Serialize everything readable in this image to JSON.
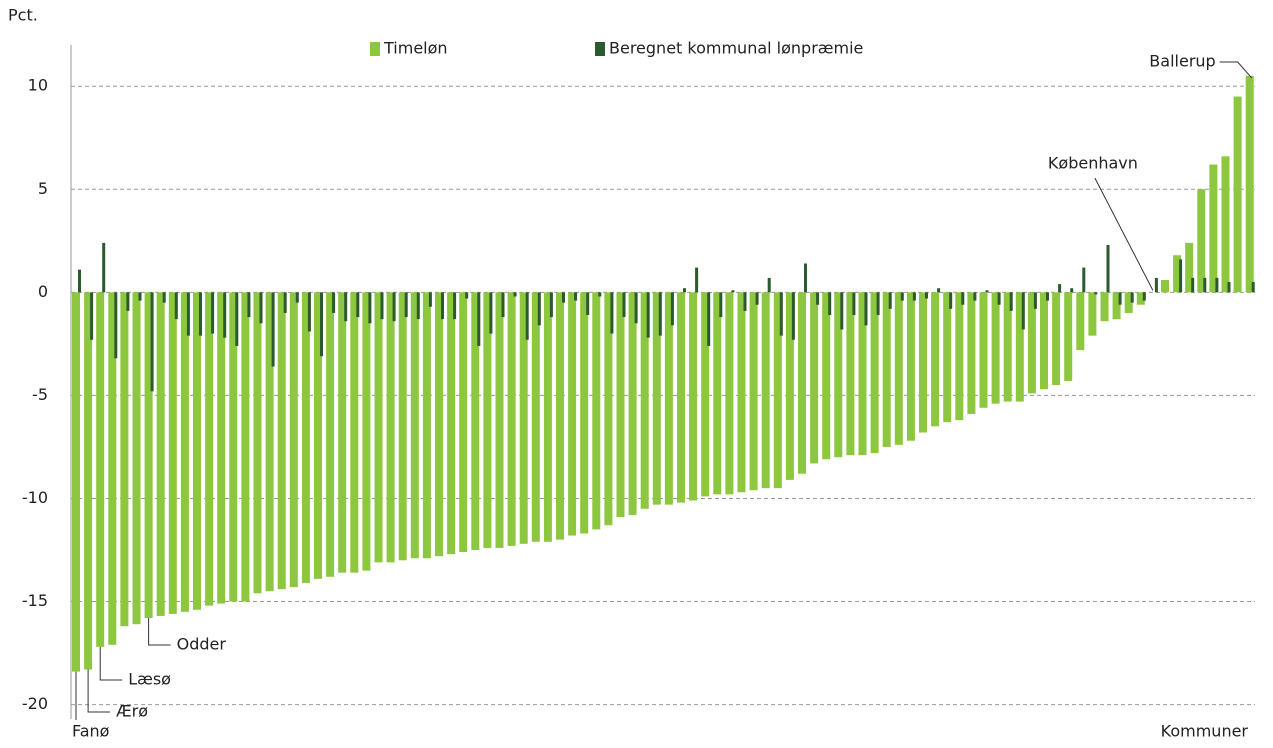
{
  "chart_data": {
    "type": "bar",
    "y_label": "Pct.",
    "x_label": "Kommuner",
    "categories": [
      "Fanø",
      "Ærø",
      "Læsø",
      null,
      null,
      null,
      "Odder",
      null,
      null,
      null,
      null,
      null,
      null,
      null,
      null,
      null,
      null,
      null,
      null,
      null,
      null,
      null,
      null,
      null,
      null,
      null,
      null,
      null,
      null,
      null,
      null,
      null,
      null,
      null,
      null,
      null,
      null,
      null,
      null,
      null,
      null,
      null,
      null,
      null,
      null,
      null,
      null,
      null,
      null,
      null,
      null,
      null,
      null,
      null,
      null,
      null,
      null,
      null,
      null,
      null,
      null,
      null,
      null,
      null,
      null,
      null,
      null,
      null,
      null,
      null,
      null,
      null,
      null,
      null,
      null,
      null,
      null,
      null,
      null,
      null,
      null,
      null,
      null,
      null,
      null,
      null,
      null,
      null,
      null,
      "København",
      null,
      null,
      null,
      null,
      null,
      null,
      null,
      "Ballerup"
    ],
    "series": [
      {
        "name": "Timeløn",
        "color": "#8dc63f",
        "values": [
          -18.4,
          -18.3,
          -17.2,
          -17.1,
          -16.2,
          -16.1,
          -15.8,
          -15.7,
          -15.6,
          -15.5,
          -15.4,
          -15.2,
          -15.1,
          -15.0,
          -15.0,
          -14.6,
          -14.5,
          -14.4,
          -14.3,
          -14.1,
          -13.9,
          -13.8,
          -13.6,
          -13.6,
          -13.5,
          -13.1,
          -13.1,
          -13.0,
          -12.9,
          -12.9,
          -12.8,
          -12.7,
          -12.6,
          -12.5,
          -12.4,
          -12.4,
          -12.3,
          -12.2,
          -12.1,
          -12.1,
          -12.0,
          -11.8,
          -11.7,
          -11.5,
          -11.3,
          -10.9,
          -10.8,
          -10.5,
          -10.3,
          -10.3,
          -10.2,
          -10.1,
          -9.9,
          -9.8,
          -9.8,
          -9.7,
          -9.6,
          -9.5,
          -9.5,
          -9.1,
          -8.8,
          -8.3,
          -8.1,
          -8.0,
          -7.9,
          -7.9,
          -7.8,
          -7.5,
          -7.4,
          -7.2,
          -6.8,
          -6.5,
          -6.3,
          -6.2,
          -5.9,
          -5.6,
          -5.4,
          -5.3,
          -5.3,
          -4.9,
          -4.7,
          -4.5,
          -4.3,
          -2.8,
          -2.1,
          -1.4,
          -1.3,
          -1.0,
          -0.6,
          0,
          0.6,
          1.8,
          2.4,
          5.0,
          6.2,
          6.6,
          9.5,
          10.5
        ]
      },
      {
        "name": "Beregnet kommunal lønpræmie",
        "color": "#2b5a2e",
        "values": [
          1.1,
          -2.3,
          2.4,
          -3.2,
          -0.9,
          -0.4,
          -4.8,
          -0.5,
          -1.3,
          -2.1,
          -2.1,
          -2.0,
          -2.2,
          -2.6,
          -1.2,
          -1.5,
          -3.6,
          -1.0,
          -0.5,
          -1.9,
          -3.1,
          -1.0,
          -1.4,
          -1.2,
          -1.5,
          -1.3,
          -1.4,
          -1.2,
          -1.3,
          -0.7,
          -1.3,
          -1.3,
          -0.3,
          -2.6,
          -2.0,
          -1.2,
          -0.2,
          -2.3,
          -1.6,
          -1.2,
          -0.5,
          -0.4,
          -1.1,
          -0.2,
          -2.0,
          -1.2,
          -1.5,
          -2.2,
          -2.1,
          -1.6,
          0.2,
          1.2,
          -2.6,
          -1.2,
          0.1,
          -0.9,
          -0.6,
          0.7,
          -2.1,
          -2.3,
          1.4,
          -0.6,
          -1.1,
          -1.8,
          -1.1,
          -1.6,
          -1.1,
          -0.8,
          -0.4,
          -0.4,
          -0.3,
          0.2,
          -0.8,
          -0.6,
          -0.4,
          0.1,
          -0.6,
          -0.9,
          -1.8,
          -0.8,
          -0.4,
          0.4,
          0.2,
          1.2,
          -0.1,
          2.3,
          -0.6,
          -0.5,
          -0.4,
          0.7,
          0,
          1.6,
          0.7,
          0.7,
          0.7,
          0.5,
          0,
          0.5
        ]
      }
    ],
    "ylim": [
      -20.7,
      12
    ],
    "yticks": [
      10,
      5,
      0,
      -5,
      -10,
      -15,
      -20
    ],
    "grid": true
  }
}
